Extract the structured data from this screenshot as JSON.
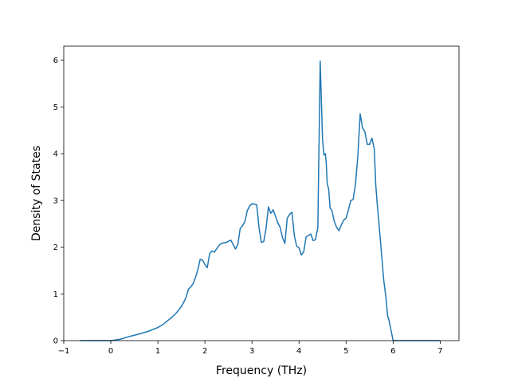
{
  "chart_data": {
    "type": "line",
    "title": "",
    "xlabel": "Frequency (THz)",
    "ylabel": "Density of States",
    "xlim": [
      -1,
      7.4
    ],
    "ylim": [
      0,
      6.3
    ],
    "xticks": [
      -1,
      0,
      1,
      2,
      3,
      4,
      5,
      6,
      7
    ],
    "yticks": [
      0,
      1,
      2,
      3,
      4,
      5,
      6
    ],
    "grid": false,
    "legend": "none",
    "series": [
      {
        "color": "#1f77b4",
        "x": [
          -0.65,
          0.0,
          0.2,
          0.4,
          0.6,
          0.8,
          1.0,
          1.1,
          1.2,
          1.3,
          1.4,
          1.5,
          1.55,
          1.6,
          1.65,
          1.7,
          1.75,
          1.8,
          1.85,
          1.9,
          1.95,
          2.0,
          2.05,
          2.1,
          2.15,
          2.2,
          2.3,
          2.35,
          2.45,
          2.55,
          2.65,
          2.7,
          2.75,
          2.8,
          2.85,
          2.9,
          2.95,
          3.0,
          3.05,
          3.1,
          3.15,
          3.2,
          3.25,
          3.3,
          3.35,
          3.4,
          3.45,
          3.5,
          3.55,
          3.6,
          3.65,
          3.7,
          3.75,
          3.8,
          3.85,
          3.9,
          3.95,
          4.0,
          4.05,
          4.1,
          4.15,
          4.2,
          4.25,
          4.3,
          4.35,
          4.4,
          4.45,
          4.5,
          4.53,
          4.56,
          4.58,
          4.6,
          4.63,
          4.66,
          4.7,
          4.75,
          4.8,
          4.85,
          4.9,
          4.95,
          5.0,
          5.05,
          5.1,
          5.15,
          5.2,
          5.25,
          5.3,
          5.35,
          5.4,
          5.45,
          5.5,
          5.55,
          5.6,
          5.63,
          5.66,
          5.7,
          5.75,
          5.8,
          5.85,
          5.88,
          5.92,
          5.96,
          6.0,
          6.05,
          6.1,
          6.15,
          6.2,
          6.25,
          6.3,
          6.35,
          6.4,
          6.5,
          6.7,
          7.0
        ],
        "values": [
          0.0,
          0.0,
          0.03,
          0.09,
          0.14,
          0.2,
          0.28,
          0.34,
          0.42,
          0.5,
          0.6,
          0.73,
          0.82,
          0.93,
          1.1,
          1.15,
          1.22,
          1.35,
          1.52,
          1.74,
          1.72,
          1.63,
          1.56,
          1.86,
          1.92,
          1.89,
          2.04,
          2.08,
          2.1,
          2.15,
          1.96,
          2.06,
          2.4,
          2.46,
          2.55,
          2.78,
          2.88,
          2.93,
          2.92,
          2.91,
          2.42,
          2.1,
          2.12,
          2.4,
          2.86,
          2.72,
          2.8,
          2.66,
          2.52,
          2.42,
          2.2,
          2.08,
          2.62,
          2.7,
          2.75,
          2.25,
          2.02,
          1.99,
          1.83,
          1.9,
          2.22,
          2.25,
          2.28,
          2.14,
          2.16,
          2.42,
          5.98,
          4.3,
          3.97,
          4.0,
          3.78,
          3.35,
          3.25,
          2.84,
          2.78,
          2.55,
          2.42,
          2.35,
          2.48,
          2.58,
          2.62,
          2.8,
          3.0,
          3.02,
          3.35,
          3.95,
          4.85,
          4.55,
          4.47,
          4.2,
          4.2,
          4.33,
          4.1,
          3.35,
          2.95,
          2.5,
          1.9,
          1.3,
          0.9,
          0.55,
          0.4,
          0.2,
          0.0,
          0.0,
          0.0,
          0.0,
          0.0,
          0.0,
          0.0,
          0.0,
          0.0,
          0.0,
          0.0,
          0.0
        ]
      }
    ]
  }
}
